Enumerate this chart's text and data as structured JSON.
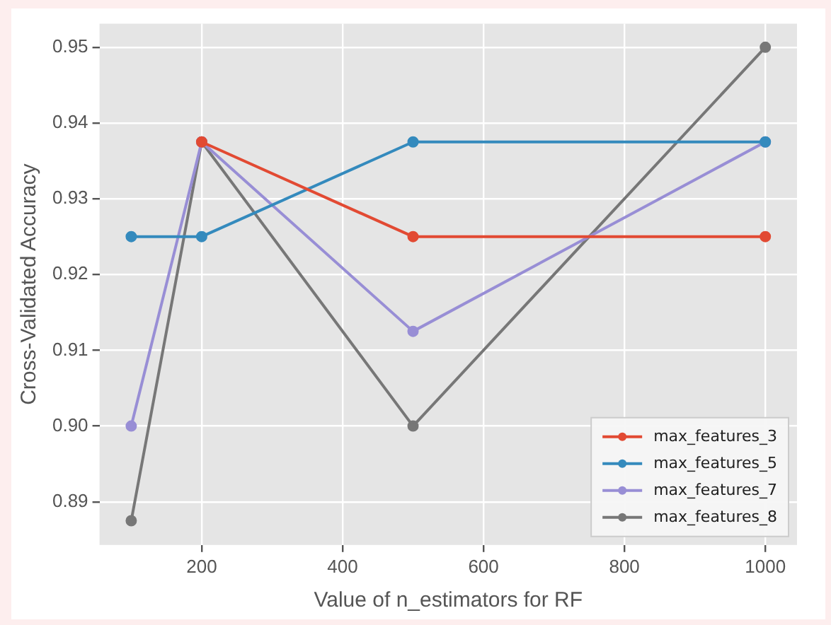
{
  "chart_data": {
    "type": "line",
    "xlabel": "Value of n_estimators for RF",
    "ylabel": "Cross-Validated Accuracy",
    "x": [
      100,
      200,
      500,
      1000
    ],
    "series": [
      {
        "name": "max_features_3",
        "color": "#e24a33",
        "values": [
          null,
          0.9375,
          0.925,
          0.925
        ]
      },
      {
        "name": "max_features_5",
        "color": "#348abd",
        "values": [
          0.925,
          0.925,
          0.9375,
          0.9375
        ]
      },
      {
        "name": "max_features_7",
        "color": "#988ed5",
        "values": [
          0.9,
          0.9375,
          0.9125,
          0.9375
        ]
      },
      {
        "name": "max_features_8",
        "color": "#777777",
        "values": [
          0.8875,
          0.9375,
          0.9,
          0.95
        ]
      }
    ],
    "xlim": [
      55,
      1045
    ],
    "xticks": [
      200,
      400,
      600,
      800,
      1000
    ],
    "ylim": [
      0.8843,
      0.9531
    ],
    "yticks": [
      0.89,
      {
        "value": 0.9,
        "label": "0.90"
      },
      0.91,
      0.92,
      0.93,
      0.94,
      0.95
    ],
    "grid": true,
    "legend": "bottom right",
    "marker": "circle",
    "line_style": "solid"
  }
}
